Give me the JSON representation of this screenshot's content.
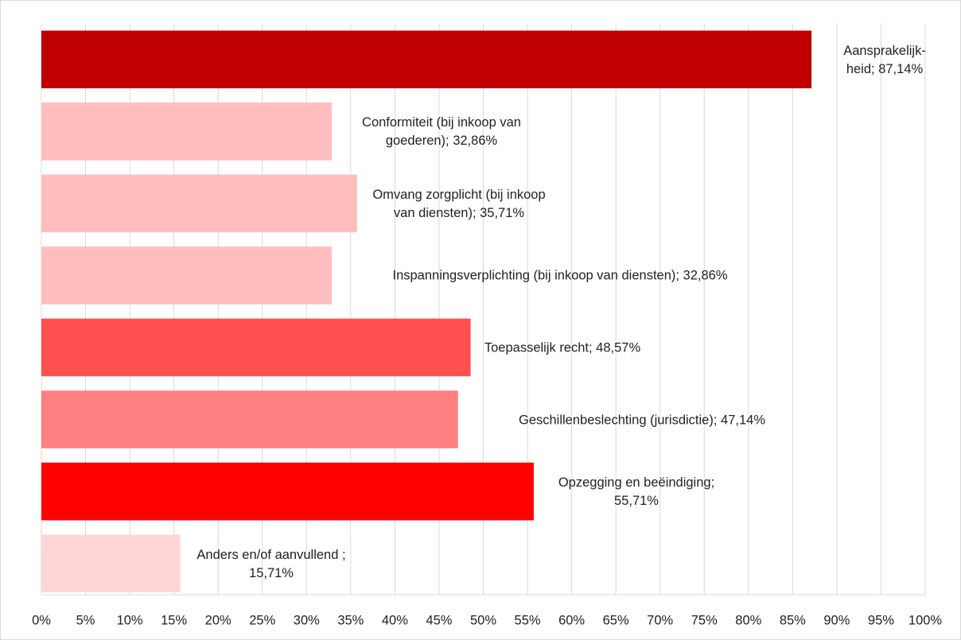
{
  "chart_data": {
    "type": "bar",
    "orientation": "horizontal",
    "values": [
      87.14,
      32.86,
      35.71,
      32.86,
      48.57,
      47.14,
      55.71,
      15.71
    ],
    "value_labels": [
      "Aansprakelijk-heid; 87,14%",
      "Conformiteit (bij inkoop van goederen); 32,86%",
      "Omvang zorgplicht (bij inkoop van diensten); 35,71%",
      "Inspanningsverplichting (bij inkoop van diensten); 32,86%",
      "Toepasselijk recht; 48,57%",
      "Geschillenbeslechting (jurisdictie); 47,14%",
      "Opzegging en beëindiging; 55,71%",
      "Anders en/of aanvullend ; 15,71%"
    ],
    "colors": [
      "#c00000",
      "#ffbdbd",
      "#ffbdbd",
      "#ffbdbd",
      "#ff5050",
      "#ff8080",
      "#ff0000",
      "#ffd5d5"
    ],
    "xlim": [
      0,
      100
    ],
    "xticks": [
      {
        "value": 0,
        "label": "0%"
      },
      {
        "value": 5,
        "label": "5%"
      },
      {
        "value": 10,
        "label": "10%"
      },
      {
        "value": 15,
        "label": "15%"
      },
      {
        "value": 20,
        "label": "20%"
      },
      {
        "value": 25,
        "label": "25%"
      },
      {
        "value": 30,
        "label": "30%"
      },
      {
        "value": 35,
        "label": "35%"
      },
      {
        "value": 40,
        "label": "40%"
      },
      {
        "value": 45,
        "label": "45%"
      },
      {
        "value": 50,
        "label": "50%"
      },
      {
        "value": 55,
        "label": "55%"
      },
      {
        "value": 60,
        "label": "60%"
      },
      {
        "value": 65,
        "label": "65%"
      },
      {
        "value": 70,
        "label": "70%"
      },
      {
        "value": 75,
        "label": "75%"
      },
      {
        "value": 80,
        "label": "80%"
      },
      {
        "value": 85,
        "label": "85%"
      },
      {
        "value": 90,
        "label": "90%"
      },
      {
        "value": 95,
        "label": "95%"
      },
      {
        "value": 100,
        "label": "100%"
      }
    ],
    "grid": true
  }
}
